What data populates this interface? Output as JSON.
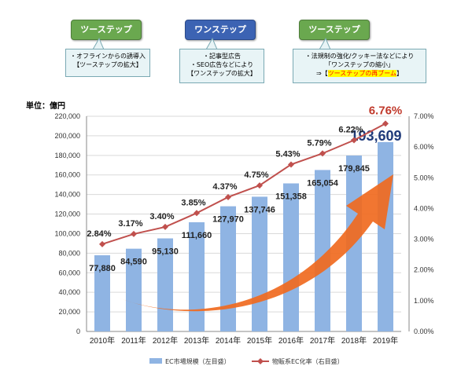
{
  "flow": {
    "steps": [
      {
        "label": "ツーステップ",
        "color": "#6aa84f"
      },
      {
        "label": "ワンステップ",
        "color": "#3c63b3"
      },
      {
        "label": "ツーステップ",
        "color": "#6aa84f"
      }
    ],
    "notes": [
      {
        "lines": [
          "・オフラインからの誘導入",
          "【ツーステップの拡大】"
        ]
      },
      {
        "lines": [
          "・記事型広告",
          "・SEO広告などにより",
          "【ワンステップの拡大】"
        ]
      },
      {
        "lines": [
          "・法規制の強化/クッキー法などにより",
          "「ワンステップの縮小」"
        ],
        "highlight_prefix": "⇒【",
        "highlight": "ツーステップの再ブーム",
        "highlight_suffix": "】"
      }
    ]
  },
  "unit_label": "単位：億円",
  "chart_data": {
    "type": "bar",
    "categories": [
      "2010年",
      "2011年",
      "2012年",
      "2013年",
      "2014年",
      "2015年",
      "2016年",
      "2017年",
      "2018年",
      "2019年"
    ],
    "series": [
      {
        "name": "EC市場規模（左目盛）",
        "type": "bar",
        "color": "#8fb4e3",
        "values": [
          77880,
          84590,
          95130,
          111660,
          127970,
          137746,
          151358,
          165054,
          179845,
          193609
        ],
        "labels": [
          "77,880",
          "84,590",
          "95,130",
          "111,660",
          "127,970",
          "137,746",
          "151,358",
          "165,054",
          "179,845",
          "193,609"
        ]
      },
      {
        "name": "物販系EC化率（右目盛）",
        "type": "line",
        "color": "#c0504d",
        "values": [
          2.84,
          3.17,
          3.4,
          3.85,
          4.37,
          4.75,
          5.43,
          5.79,
          6.22,
          6.76
        ],
        "labels": [
          "2.84%",
          "3.17%",
          "3.40%",
          "3.85%",
          "4.37%",
          "4.75%",
          "5.43%",
          "5.79%",
          "6.22%",
          "6.76%"
        ]
      }
    ],
    "y_left": {
      "min": 0,
      "max": 220000,
      "step": 20000,
      "ticks": [
        "0",
        "20,000",
        "40,000",
        "60,000",
        "80,000",
        "100,000",
        "120,000",
        "140,000",
        "160,000",
        "180,000",
        "200,000",
        "220,000"
      ]
    },
    "y_right": {
      "min": 0,
      "max": 7,
      "step": 1,
      "ticks": [
        "0.00%",
        "1.00%",
        "2.00%",
        "3.00%",
        "4.00%",
        "5.00%",
        "6.00%",
        "7.00%"
      ]
    },
    "grid": true,
    "legend": "bottom",
    "annotation": "orange upward trend arrow",
    "accent": "#f06a1f"
  }
}
